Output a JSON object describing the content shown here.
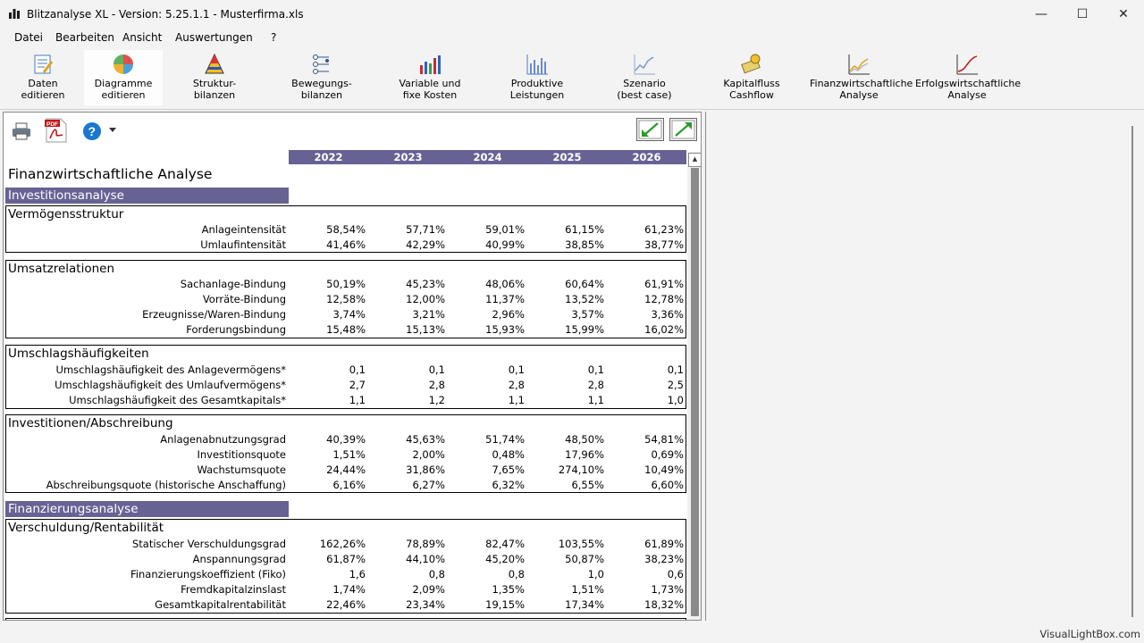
{
  "window": {
    "title": "Blitzanalyse XL - Version: 5.25.1.1 - Musterfirma.xls",
    "controls": {
      "minimize": "—",
      "maximize": "☐",
      "close": "✕"
    }
  },
  "menu": [
    "Datei",
    "Bearbeiten",
    "Ansicht",
    "Auswertungen",
    "?"
  ],
  "toolbar": [
    {
      "label": "Daten\neditieren",
      "icon": "data-edit-icon"
    },
    {
      "label": "Diagramme\neditieren",
      "icon": "diagram-edit-icon"
    },
    {
      "label": "Struktur-\nbilanzen",
      "icon": "structure-balance-icon"
    },
    {
      "label": "Bewegungs-\nbilanzen",
      "icon": "flow-balance-icon"
    },
    {
      "label": "Variable und\nfixe Kosten",
      "icon": "bar-chart-icon"
    },
    {
      "label": "Produktive\nLeistungen",
      "icon": "productive-chart-icon"
    },
    {
      "label": "Szenario\n(best case)",
      "icon": "scenario-chart-icon"
    },
    {
      "label": "Kapitalfluss\nCashflow",
      "icon": "cashflow-icon"
    },
    {
      "label": "Finanzwirtschaftliche\nAnalyse",
      "icon": "financial-analysis-icon"
    },
    {
      "label": "Erfolgswirtschaftliche\nAnalyse",
      "icon": "performance-analysis-icon"
    }
  ],
  "sheet": {
    "icons": [
      "printer-icon",
      "pdf-icon",
      "help-icon",
      "collapse-icon",
      "expand-icon"
    ],
    "years": [
      "2022",
      "2023",
      "2024",
      "2025",
      "2026"
    ],
    "title": "Finanzwirtschaftliche Analyse",
    "sections": [
      {
        "header": "Investitionsanalyse",
        "groups": [
          {
            "title": "Vermögensstruktur",
            "rows": [
              {
                "label": "Anlageintensität",
                "values": [
                  "58,54%",
                  "57,71%",
                  "59,01%",
                  "61,15%",
                  "61,23%"
                ]
              },
              {
                "label": "Umlaufintensität",
                "values": [
                  "41,46%",
                  "42,29%",
                  "40,99%",
                  "38,85%",
                  "38,77%"
                ]
              }
            ]
          },
          {
            "title": "Umsatzrelationen",
            "rows": [
              {
                "label": "Sachanlage-Bindung",
                "values": [
                  "50,19%",
                  "45,23%",
                  "48,06%",
                  "60,64%",
                  "61,91%"
                ]
              },
              {
                "label": "Vorräte-Bindung",
                "values": [
                  "12,58%",
                  "12,00%",
                  "11,37%",
                  "13,52%",
                  "12,78%"
                ]
              },
              {
                "label": "Erzeugnisse/Waren-Bindung",
                "values": [
                  "3,74%",
                  "3,21%",
                  "2,96%",
                  "3,57%",
                  "3,36%"
                ]
              },
              {
                "label": "Forderungsbindung",
                "values": [
                  "15,48%",
                  "15,13%",
                  "15,93%",
                  "15,99%",
                  "16,02%"
                ]
              }
            ]
          },
          {
            "title": "Umschlagshäufigkeiten",
            "rows": [
              {
                "label": "Umschlagshäufigkeit des Anlagevermögens*",
                "values": [
                  "0,1",
                  "0,1",
                  "0,1",
                  "0,1",
                  "0,1"
                ]
              },
              {
                "label": "Umschlagshäufigkeit des Umlaufvermögens*",
                "values": [
                  "2,7",
                  "2,8",
                  "2,8",
                  "2,8",
                  "2,5"
                ]
              },
              {
                "label": "Umschlagshäufigkeit des Gesamtkapitals*",
                "values": [
                  "1,1",
                  "1,2",
                  "1,1",
                  "1,1",
                  "1,0"
                ]
              }
            ]
          },
          {
            "title": "Investitionen/Abschreibung",
            "rows": [
              {
                "label": "Anlagenabnutzungsgrad",
                "values": [
                  "40,39%",
                  "45,63%",
                  "51,74%",
                  "48,50%",
                  "54,81%"
                ]
              },
              {
                "label": "Investitionsquote",
                "values": [
                  "1,51%",
                  "2,00%",
                  "0,48%",
                  "17,96%",
                  "0,69%"
                ]
              },
              {
                "label": "Wachstumsquote",
                "values": [
                  "24,44%",
                  "31,86%",
                  "7,65%",
                  "274,10%",
                  "10,49%"
                ]
              },
              {
                "label": "Abschreibungsquote (historische Anschaffung)",
                "values": [
                  "6,16%",
                  "6,27%",
                  "6,32%",
                  "6,55%",
                  "6,60%"
                ]
              }
            ]
          }
        ]
      },
      {
        "header": "Finanzierungsanalyse",
        "groups": [
          {
            "title": "Verschuldung/Rentabilität",
            "rows": [
              {
                "label": "Statischer Verschuldungsgrad",
                "values": [
                  "162,26%",
                  "78,89%",
                  "82,47%",
                  "103,55%",
                  "61,89%"
                ]
              },
              {
                "label": "Anspannungsgrad",
                "values": [
                  "61,87%",
                  "44,10%",
                  "45,20%",
                  "50,87%",
                  "38,23%"
                ]
              },
              {
                "label": "Finanzierungskoeffizient (Fiko)",
                "values": [
                  "1,6",
                  "0,8",
                  "0,8",
                  "1,0",
                  "0,6"
                ]
              },
              {
                "label": "Fremdkapitalzinslast",
                "values": [
                  "1,74%",
                  "2,09%",
                  "1,35%",
                  "1,51%",
                  "1,73%"
                ]
              },
              {
                "label": "Gesamtkapitalrentabilität",
                "values": [
                  "22,46%",
                  "23,34%",
                  "19,15%",
                  "17,34%",
                  "18,32%"
                ]
              }
            ]
          }
        ]
      }
    ]
  },
  "status": {
    "right_text": "VisualLightBox.com"
  },
  "colors": {
    "header_bg": "#676294",
    "header_fg": "#ffffff",
    "window_bg": "#f3f3f3"
  }
}
